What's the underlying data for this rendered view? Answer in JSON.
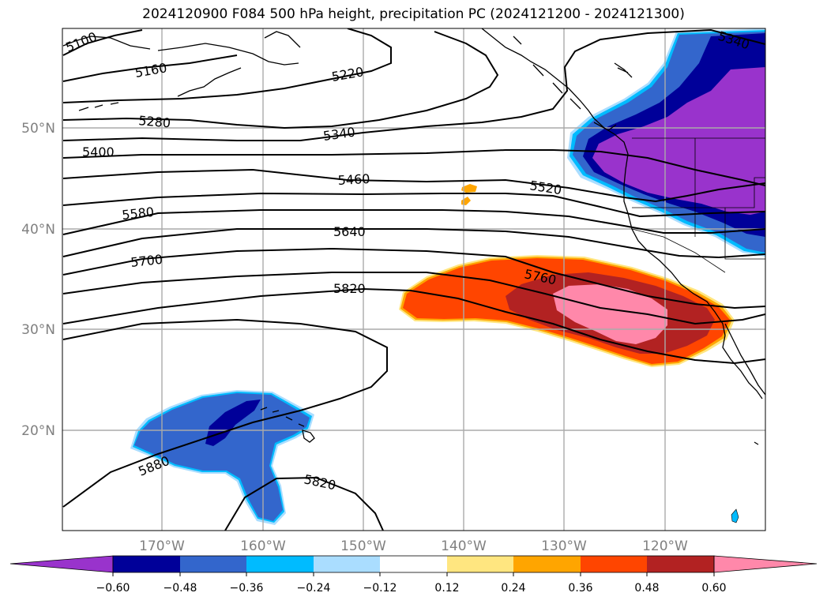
{
  "title": "2024120900 F084 500 hPa height, precipitation PC (2024121200 - 2024121300)",
  "map": {
    "lat_labels": [
      "50°N",
      "40°N",
      "30°N",
      "20°N"
    ],
    "lon_labels": [
      "170°W",
      "160°W",
      "150°W",
      "140°W",
      "130°W",
      "120°W"
    ],
    "axis_label_color": "#808080",
    "grid": true
  },
  "contours": {
    "labels": [
      {
        "text": "5100"
      },
      {
        "text": "5160"
      },
      {
        "text": "5220"
      },
      {
        "text": "5280"
      },
      {
        "text": "5340"
      },
      {
        "text": "5400"
      },
      {
        "text": "5460"
      },
      {
        "text": "5520"
      },
      {
        "text": "5580"
      },
      {
        "text": "5640"
      },
      {
        "text": "5700"
      },
      {
        "text": "5760"
      },
      {
        "text": "5820"
      },
      {
        "text": "5880"
      },
      {
        "text": "5820"
      },
      {
        "text": "5340"
      }
    ]
  },
  "colorbar": {
    "ticks": [
      "−0.60",
      "−0.48",
      "−0.36",
      "−0.24",
      "−0.12",
      "0.12",
      "0.24",
      "0.36",
      "0.48",
      "0.60"
    ],
    "colors": [
      "#9933cc",
      "#000099",
      "#3366cc",
      "#00bbff",
      "#aaddff",
      "#ffffff",
      "#ffe680",
      "#ffa500",
      "#ff4500",
      "#b22222",
      "#ff88aa"
    ]
  }
}
